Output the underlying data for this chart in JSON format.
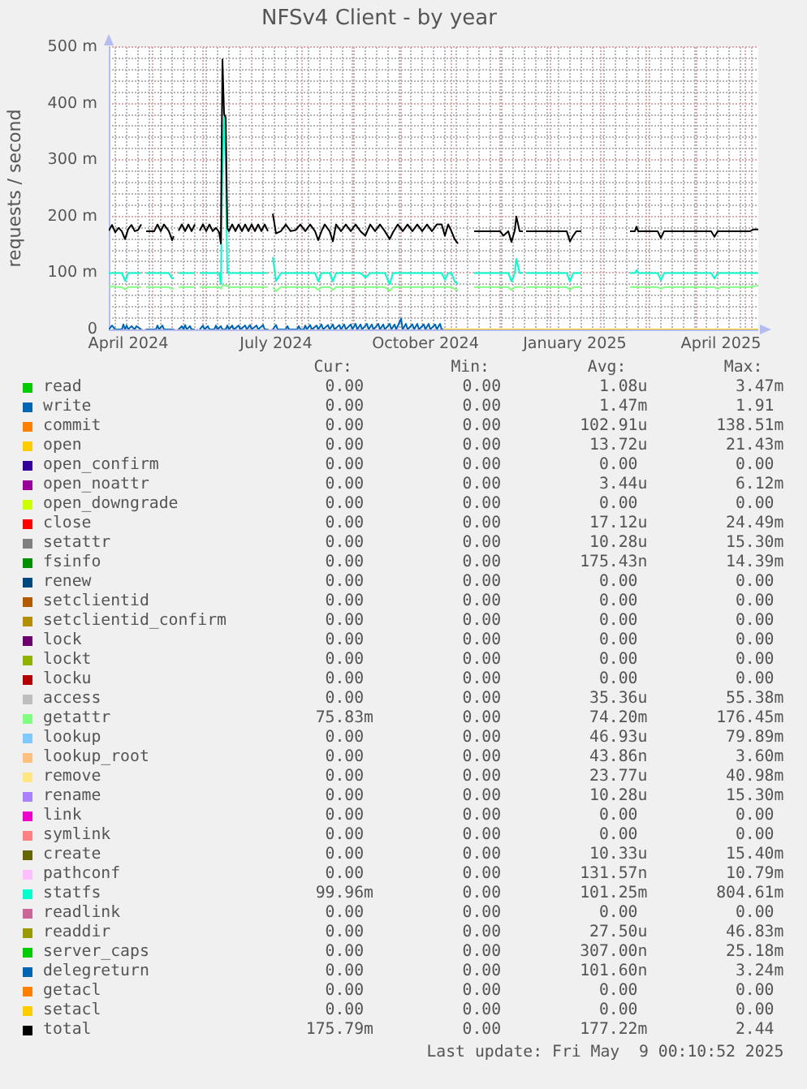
{
  "chart_data": {
    "type": "line",
    "title": "NFSv4 Client - by year",
    "ylabel": "requests / second",
    "xlim": [
      "2024-04-04",
      "2025-05-09"
    ],
    "xticks": [
      {
        "value": "2024-04-08",
        "label": null
      },
      {
        "value": "2024-04-15",
        "label": null
      },
      {
        "value": "2024-04-16",
        "label": "April 2024"
      },
      {
        "value": "2024-04-22",
        "label": null
      },
      {
        "value": "2024-04-29",
        "label": null
      },
      {
        "value": "2024-05-01",
        "label": null
      },
      {
        "value": "2024-05-06",
        "label": null
      },
      {
        "value": "2024-05-13",
        "label": null
      },
      {
        "value": "2024-05-20",
        "label": null
      },
      {
        "value": "2024-05-27",
        "label": null
      },
      {
        "value": "2024-06-01",
        "label": null
      },
      {
        "value": "2024-06-03",
        "label": null
      },
      {
        "value": "2024-06-10",
        "label": null
      },
      {
        "value": "2024-06-17",
        "label": null
      },
      {
        "value": "2024-06-24",
        "label": null
      },
      {
        "value": "2024-07-01",
        "label": null
      },
      {
        "value": "2024-07-08",
        "label": null
      },
      {
        "value": "2024-07-15",
        "label": null
      },
      {
        "value": "2024-07-16",
        "label": "July 2024"
      },
      {
        "value": "2024-07-22",
        "label": null
      },
      {
        "value": "2024-07-29",
        "label": null
      },
      {
        "value": "2024-08-01",
        "label": null
      },
      {
        "value": "2024-08-05",
        "label": null
      },
      {
        "value": "2024-08-12",
        "label": null
      },
      {
        "value": "2024-08-19",
        "label": null
      },
      {
        "value": "2024-08-26",
        "label": null
      },
      {
        "value": "2024-09-01",
        "label": null
      },
      {
        "value": "2024-09-02",
        "label": null
      },
      {
        "value": "2024-09-09",
        "label": null
      },
      {
        "value": "2024-09-16",
        "label": null
      },
      {
        "value": "2024-09-23",
        "label": null
      },
      {
        "value": "2024-09-30",
        "label": null
      },
      {
        "value": "2024-10-01",
        "label": null
      },
      {
        "value": "2024-10-07",
        "label": null
      },
      {
        "value": "2024-10-14",
        "label": null
      },
      {
        "value": "2024-10-16",
        "label": "October 2024"
      },
      {
        "value": "2024-10-21",
        "label": null
      },
      {
        "value": "2024-10-28",
        "label": null
      },
      {
        "value": "2024-11-01",
        "label": null
      },
      {
        "value": "2024-11-04",
        "label": null
      },
      {
        "value": "2024-11-11",
        "label": null
      },
      {
        "value": "2024-11-18",
        "label": null
      },
      {
        "value": "2024-11-25",
        "label": null
      },
      {
        "value": "2024-12-01",
        "label": null
      },
      {
        "value": "2024-12-02",
        "label": null
      },
      {
        "value": "2024-12-09",
        "label": null
      },
      {
        "value": "2024-12-16",
        "label": null
      },
      {
        "value": "2024-12-23",
        "label": null
      },
      {
        "value": "2024-12-30",
        "label": null
      },
      {
        "value": "2025-01-01",
        "label": null
      },
      {
        "value": "2025-01-06",
        "label": null
      },
      {
        "value": "2025-01-13",
        "label": null
      },
      {
        "value": "2025-01-16",
        "label": "January 2025"
      },
      {
        "value": "2025-01-20",
        "label": null
      },
      {
        "value": "2025-01-27",
        "label": null
      },
      {
        "value": "2025-02-01",
        "label": null
      },
      {
        "value": "2025-02-03",
        "label": null
      },
      {
        "value": "2025-02-10",
        "label": null
      },
      {
        "value": "2025-02-17",
        "label": null
      },
      {
        "value": "2025-02-24",
        "label": null
      },
      {
        "value": "2025-03-01",
        "label": null
      },
      {
        "value": "2025-03-03",
        "label": null
      },
      {
        "value": "2025-03-10",
        "label": null
      },
      {
        "value": "2025-03-17",
        "label": null
      },
      {
        "value": "2025-03-24",
        "label": null
      },
      {
        "value": "2025-03-31",
        "label": null
      },
      {
        "value": "2025-04-01",
        "label": null
      },
      {
        "value": "2025-04-07",
        "label": null
      },
      {
        "value": "2025-04-14",
        "label": null
      },
      {
        "value": "2025-04-16",
        "label": "April 2025"
      },
      {
        "value": "2025-04-21",
        "label": null
      },
      {
        "value": "2025-04-28",
        "label": null
      },
      {
        "value": "2025-05-01",
        "label": null
      },
      {
        "value": "2025-05-05",
        "label": null
      }
    ],
    "ylim": [
      0,
      500
    ],
    "yticks": [
      0,
      {
        "value": 20,
        "label": null
      },
      {
        "value": 40,
        "label": null
      },
      {
        "value": 60,
        "label": null
      },
      {
        "value": 80,
        "label": null
      },
      {
        "value": 100,
        "label": "100 m"
      },
      {
        "value": 120,
        "label": null
      },
      {
        "value": 140,
        "label": null
      },
      {
        "value": 160,
        "label": null
      },
      {
        "value": 180,
        "label": null
      },
      {
        "value": 200,
        "label": "200 m"
      },
      {
        "value": 220,
        "label": null
      },
      {
        "value": 240,
        "label": null
      },
      {
        "value": 260,
        "label": null
      },
      {
        "value": 280,
        "label": null
      },
      {
        "value": 300,
        "label": "300 m"
      },
      {
        "value": 320,
        "label": null
      },
      {
        "value": 340,
        "label": null
      },
      {
        "value": 360,
        "label": null
      },
      {
        "value": 380,
        "label": null
      },
      {
        "value": 400,
        "label": "400 m"
      },
      {
        "value": 420,
        "label": null
      },
      {
        "value": 440,
        "label": null
      },
      {
        "value": 460,
        "label": null
      },
      {
        "value": 480,
        "label": null
      },
      {
        "value": 500,
        "label": "500 m"
      }
    ],
    "grid": true,
    "legend": "bottom",
    "series": [
      {
        "name": "read",
        "color": "#00cc00"
      },
      {
        "name": "write",
        "color": "#0066b3",
        "x": [
          "2024-04-04",
          "2024-04-06",
          "2024-04-08",
          "2024-04-12",
          "2024-04-13",
          "2024-04-14",
          "2024-04-15",
          "2024-04-16",
          "2024-04-18",
          "2024-04-20",
          "2024-04-21",
          "2024-04-24",
          "2024-04-26",
          "2024-04-27",
          "2024-05-03",
          "2024-05-04",
          "2024-05-05",
          "2024-05-07",
          "2024-05-08",
          "2024-05-14",
          "2024-05-16",
          "2024-05-17",
          "2024-05-19",
          "2024-05-20",
          "2024-05-21",
          "2024-05-22",
          "2024-05-24",
          "2024-05-25",
          "2024-05-27",
          "2024-05-29",
          "2024-05-30",
          "2024-06-01",
          "2024-06-02",
          "2024-06-04",
          "2024-06-05",
          "2024-06-08",
          "2024-06-09",
          "2024-06-10",
          "2024-06-12",
          "2024-06-13",
          "2024-06-15",
          "2024-06-16",
          "2024-06-17",
          "2024-06-19",
          "2024-06-20",
          "2024-06-23",
          "2024-06-24",
          "2024-06-27",
          "2024-06-28",
          "2024-06-30",
          "2024-07-01",
          "2024-07-04",
          "2024-07-05",
          "2024-07-08",
          "2024-07-09",
          "2024-07-11",
          "2024-07-13",
          "2024-07-14",
          "2024-07-16",
          "2024-07-17",
          "2024-07-22",
          "2024-07-23",
          "2024-07-24",
          "2024-07-29",
          "2024-07-30",
          "2024-07-31",
          "2024-08-02",
          "2024-08-03",
          "2024-08-04",
          "2024-08-06",
          "2024-08-07",
          "2024-08-10",
          "2024-08-11",
          "2024-08-13",
          "2024-08-14",
          "2024-08-17",
          "2024-08-18",
          "2024-08-20",
          "2024-08-21",
          "2024-08-24",
          "2024-08-25",
          "2024-08-27",
          "2024-08-28",
          "2024-08-31",
          "2024-09-01",
          "2024-09-03",
          "2024-09-04",
          "2024-09-06",
          "2024-09-07",
          "2024-09-10",
          "2024-09-11",
          "2024-09-13",
          "2024-09-14",
          "2024-09-17",
          "2024-09-18",
          "2024-09-20",
          "2024-09-21",
          "2024-09-24",
          "2024-09-25",
          "2024-09-27",
          "2024-09-28",
          "2024-10-01",
          "2024-10-02",
          "2024-10-04",
          "2024-10-05",
          "2024-10-08",
          "2024-10-09",
          "2024-10-11",
          "2024-10-12",
          "2024-10-15",
          "2024-10-16",
          "2024-10-18",
          "2024-10-19",
          "2024-10-22",
          "2024-10-23",
          "2024-10-25",
          "2024-10-26",
          "2024-10-27"
        ],
        "values": [
          0,
          7,
          0,
          0,
          9,
          0,
          7,
          0,
          6,
          0,
          6,
          0,
          null,
          0,
          0,
          7,
          0,
          7,
          0,
          0,
          null,
          0,
          6,
          0,
          8,
          0,
          6,
          0,
          0,
          null,
          0,
          7,
          0,
          6,
          0,
          0,
          7,
          0,
          6,
          0,
          0,
          7,
          0,
          7,
          0,
          7,
          0,
          7,
          0,
          8,
          0,
          7,
          0,
          8,
          0,
          0,
          null,
          0,
          8,
          0,
          0,
          6,
          0,
          0,
          6,
          0,
          0,
          7,
          0,
          8,
          0,
          7,
          0,
          9,
          0,
          8,
          0,
          9,
          0,
          8,
          0,
          9,
          0,
          9,
          0,
          10,
          0,
          9,
          0,
          10,
          0,
          9,
          0,
          10,
          0,
          9,
          0,
          10,
          0,
          9,
          0,
          19,
          0,
          10,
          0,
          9,
          0,
          10,
          0,
          9,
          0,
          10,
          0,
          9,
          0,
          10,
          0,
          0
        ]
      },
      {
        "name": "commit",
        "color": "#ff8000"
      },
      {
        "name": "open",
        "color": "#ffcc00"
      },
      {
        "name": "open_confirm",
        "color": "#330099"
      },
      {
        "name": "open_noattr",
        "color": "#990099"
      },
      {
        "name": "open_downgrade",
        "color": "#ccff00"
      },
      {
        "name": "close",
        "color": "#ff0000"
      },
      {
        "name": "setattr",
        "color": "#808080"
      },
      {
        "name": "fsinfo",
        "color": "#008f00"
      },
      {
        "name": "renew",
        "color": "#00487d"
      },
      {
        "name": "setclientid",
        "color": "#b35a00"
      },
      {
        "name": "setclientid_confirm",
        "color": "#b38f00"
      },
      {
        "name": "lock",
        "color": "#6b006b"
      },
      {
        "name": "lockt",
        "color": "#8fb300"
      },
      {
        "name": "locku",
        "color": "#b30000"
      },
      {
        "name": "access",
        "color": "#bebebe"
      },
      {
        "name": "getattr",
        "color": "#80ff80",
        "x": [
          "2024-04-04",
          "2024-04-09",
          "2024-04-12",
          "2024-04-14",
          "2024-04-16",
          "2024-04-20",
          "2024-04-24",
          "2024-04-26",
          "2024-04-27",
          "2024-05-11",
          "2024-05-13",
          "2024-05-14",
          "2024-05-16",
          "2024-05-17",
          "2024-05-27",
          "2024-05-29",
          "2024-05-30",
          "2024-06-11",
          "2024-06-12",
          "2024-06-13",
          "2024-06-15",
          "2024-06-17",
          "2024-07-11",
          "2024-07-13",
          "2024-07-14",
          "2024-07-16",
          "2024-07-19",
          "2024-08-09",
          "2024-08-11",
          "2024-08-13",
          "2024-08-18",
          "2024-08-20",
          "2024-08-22",
          "2024-09-21",
          "2024-09-24",
          "2024-09-26",
          "2024-11-01",
          "2024-11-03",
          "2024-11-05",
          "2024-11-08",
          "2024-11-15",
          "2024-12-06",
          "2024-12-08",
          "2024-12-10",
          "2024-12-15",
          "2024-12-16",
          "2024-12-17",
          "2025-01-11",
          "2025-01-13",
          "2025-01-15",
          "2025-01-20",
          "2025-01-22",
          "2025-02-19",
          "2025-03-08",
          "2025-03-10",
          "2025-03-12",
          "2025-04-12",
          "2025-04-14",
          "2025-04-16",
          "2025-05-04",
          "2025-05-09"
        ],
        "values": [
          76,
          75,
          75,
          71,
          75,
          75,
          75,
          null,
          75,
          75,
          72,
          73,
          null,
          75,
          75,
          null,
          75,
          75,
          72,
          78,
          78,
          75,
          75,
          null,
          75,
          68,
          75,
          75,
          70,
          75,
          75,
          70,
          75,
          75,
          68,
          75,
          75,
          72,
          68,
          null,
          75,
          75,
          70,
          75,
          75,
          null,
          75,
          75,
          70,
          75,
          75,
          null,
          75,
          75,
          72,
          75,
          75,
          72,
          75,
          75,
          78
        ]
      },
      {
        "name": "lookup",
        "color": "#80c9ff"
      },
      {
        "name": "lookup_root",
        "color": "#ffc080"
      },
      {
        "name": "remove",
        "color": "#ffe680"
      },
      {
        "name": "rename",
        "color": "#aa80ff"
      },
      {
        "name": "link",
        "color": "#ee00cc"
      },
      {
        "name": "symlink",
        "color": "#ff8080"
      },
      {
        "name": "create",
        "color": "#666600"
      },
      {
        "name": "pathconf",
        "color": "#ffbfff"
      },
      {
        "name": "statfs",
        "color": "#00ffcc",
        "x": [
          "2024-04-04",
          "2024-04-12",
          "2024-04-14",
          "2024-04-16",
          "2024-04-24",
          "2024-04-26",
          "2024-04-27",
          "2024-05-11",
          "2024-05-13",
          "2024-05-14",
          "2024-05-16",
          "2024-05-17",
          "2024-05-27",
          "2024-05-29",
          "2024-05-30",
          "2024-06-11",
          "2024-06-12",
          "2024-06-13",
          "2024-06-14",
          "2024-06-15",
          "2024-06-16",
          "2024-07-11",
          "2024-07-13",
          "2024-07-14",
          "2024-07-16",
          "2024-07-19",
          "2024-08-09",
          "2024-08-11",
          "2024-08-13",
          "2024-08-18",
          "2024-08-20",
          "2024-08-22",
          "2024-09-06",
          "2024-09-09",
          "2024-09-12",
          "2024-09-21",
          "2024-09-24",
          "2024-09-26",
          "2024-10-26",
          "2024-10-28",
          "2024-10-30",
          "2024-11-01",
          "2024-11-03",
          "2024-11-05",
          "2024-11-08",
          "2024-11-15",
          "2024-12-06",
          "2024-12-08",
          "2024-12-10",
          "2024-12-11",
          "2024-12-13",
          "2024-12-15",
          "2024-12-16",
          "2024-12-17",
          "2025-01-11",
          "2025-01-13",
          "2025-01-15",
          "2025-01-20",
          "2025-01-22",
          "2025-02-19",
          "2025-02-22",
          "2025-02-23",
          "2025-02-24",
          "2025-03-08",
          "2025-03-10",
          "2025-03-12",
          "2025-04-10",
          "2025-04-12",
          "2025-04-14",
          "2025-05-09"
        ],
        "values": [
          100,
          100,
          86,
          100,
          100,
          null,
          100,
          100,
          90,
          92,
          null,
          100,
          100,
          null,
          100,
          100,
          80,
          300,
          376,
          290,
          100,
          100,
          null,
          128,
          86,
          100,
          100,
          85,
          100,
          100,
          85,
          100,
          100,
          92,
          100,
          100,
          80,
          100,
          100,
          88,
          100,
          100,
          85,
          80,
          null,
          100,
          100,
          85,
          100,
          125,
          100,
          100,
          null,
          100,
          100,
          85,
          100,
          100,
          null,
          100,
          100,
          105,
          100,
          100,
          87,
          100,
          100,
          90,
          100,
          100
        ]
      },
      {
        "name": "readlink",
        "color": "#cc6699"
      },
      {
        "name": "readdir",
        "color": "#999900"
      },
      {
        "name": "server_caps",
        "color": "#00cc00"
      },
      {
        "name": "delegreturn",
        "color": "#0066b3"
      },
      {
        "name": "getacl",
        "color": "#ff8000"
      },
      {
        "name": "setacl",
        "color": "#ffcc00",
        "x": [
          "2024-10-27",
          "2025-05-09"
        ],
        "values": [
          0,
          0
        ]
      },
      {
        "name": "total",
        "color": "#000000",
        "x": [
          "2024-04-04",
          "2024-04-06",
          "2024-04-08",
          "2024-04-10",
          "2024-04-12",
          "2024-04-14",
          "2024-04-16",
          "2024-04-18",
          "2024-04-20",
          "2024-04-22",
          "2024-04-24",
          "2024-04-26",
          "2024-04-27",
          "2024-05-02",
          "2024-05-04",
          "2024-05-06",
          "2024-05-08",
          "2024-05-11",
          "2024-05-13",
          "2024-05-14",
          "2024-05-16",
          "2024-05-17",
          "2024-05-19",
          "2024-05-21",
          "2024-05-23",
          "2024-05-25",
          "2024-05-27",
          "2024-05-29",
          "2024-05-30",
          "2024-06-01",
          "2024-06-03",
          "2024-06-05",
          "2024-06-07",
          "2024-06-09",
          "2024-06-11",
          "2024-06-12",
          "2024-06-13",
          "2024-06-14",
          "2024-06-15",
          "2024-06-16",
          "2024-06-17",
          "2024-06-19",
          "2024-06-21",
          "2024-06-23",
          "2024-06-25",
          "2024-06-27",
          "2024-06-29",
          "2024-07-01",
          "2024-07-03",
          "2024-07-05",
          "2024-07-07",
          "2024-07-09",
          "2024-07-11",
          "2024-07-13",
          "2024-07-14",
          "2024-07-16",
          "2024-07-19",
          "2024-07-22",
          "2024-07-25",
          "2024-07-28",
          "2024-07-31",
          "2024-08-03",
          "2024-08-06",
          "2024-08-09",
          "2024-08-11",
          "2024-08-13",
          "2024-08-15",
          "2024-08-18",
          "2024-08-20",
          "2024-08-22",
          "2024-08-25",
          "2024-08-28",
          "2024-08-31",
          "2024-09-03",
          "2024-09-06",
          "2024-09-09",
          "2024-09-12",
          "2024-09-15",
          "2024-09-18",
          "2024-09-21",
          "2024-09-24",
          "2024-09-26",
          "2024-09-29",
          "2024-10-02",
          "2024-10-05",
          "2024-10-08",
          "2024-10-11",
          "2024-10-14",
          "2024-10-17",
          "2024-10-20",
          "2024-10-23",
          "2024-10-26",
          "2024-10-28",
          "2024-10-30",
          "2024-11-01",
          "2024-11-03",
          "2024-11-05",
          "2024-11-08",
          "2024-11-15",
          "2024-11-23",
          "2024-12-01",
          "2024-12-03",
          "2024-12-06",
          "2024-12-08",
          "2024-12-10",
          "2024-12-11",
          "2024-12-13",
          "2024-12-15",
          "2024-12-16",
          "2024-12-17",
          "2025-01-02",
          "2025-01-11",
          "2025-01-13",
          "2025-01-15",
          "2025-01-17",
          "2025-01-20",
          "2025-01-22",
          "2025-02-19",
          "2025-02-22",
          "2025-02-23",
          "2025-02-24",
          "2025-03-03",
          "2025-03-08",
          "2025-03-10",
          "2025-03-12",
          "2025-03-23",
          "2025-04-10",
          "2025-04-12",
          "2025-04-14",
          "2025-04-27",
          "2025-05-04",
          "2025-05-06",
          "2025-05-09"
        ],
        "values": [
          175,
          185,
          172,
          180,
          174,
          160,
          178,
          185,
          174,
          176,
          186,
          null,
          174,
          174,
          186,
          174,
          186,
          174,
          158,
          165,
          null,
          175,
          186,
          174,
          186,
          174,
          186,
          null,
          175,
          186,
          174,
          186,
          174,
          180,
          172,
          152,
          478,
          382,
          375,
          180,
          174,
          186,
          174,
          186,
          174,
          186,
          174,
          186,
          174,
          186,
          174,
          186,
          174,
          null,
          205,
          170,
          174,
          186,
          174,
          176,
          186,
          174,
          186,
          174,
          158,
          174,
          186,
          174,
          156,
          186,
          174,
          186,
          174,
          186,
          174,
          166,
          186,
          174,
          186,
          174,
          160,
          172,
          186,
          174,
          186,
          174,
          186,
          174,
          186,
          174,
          186,
          186,
          166,
          186,
          174,
          160,
          152,
          null,
          174,
          174,
          174,
          166,
          174,
          155,
          175,
          200,
          174,
          174,
          null,
          174,
          174,
          174,
          156,
          166,
          174,
          174,
          null,
          174,
          174,
          182,
          174,
          174,
          174,
          162,
          174,
          174,
          174,
          164,
          174,
          174,
          174,
          177,
          177
        ]
      }
    ],
    "annotations": [
      "Cur:",
      "Min:",
      "Avg:",
      "Max:",
      "0.00",
      "0.00",
      "1.08u",
      "3.47m",
      "0.00",
      "0.00",
      "1.47m",
      "1.91",
      "0.00",
      "0.00",
      "102.91u",
      "138.51m",
      "0.00",
      "0.00",
      "13.72u",
      "21.43m",
      "0.00",
      "0.00",
      "0.00",
      "0.00",
      "0.00",
      "0.00",
      "3.44u",
      "6.12m",
      "0.00",
      "0.00",
      "0.00",
      "0.00",
      "0.00",
      "0.00",
      "17.12u",
      "24.49m",
      "0.00",
      "0.00",
      "10.28u",
      "15.30m",
      "0.00",
      "0.00",
      "175.43n",
      "14.39m",
      "0.00",
      "0.00",
      "0.00",
      "0.00",
      "0.00",
      "0.00",
      "0.00",
      "0.00",
      "0.00",
      "0.00",
      "0.00",
      "0.00",
      "0.00",
      "0.00",
      "0.00",
      "0.00",
      "0.00",
      "0.00",
      "0.00",
      "0.00",
      "0.00",
      "0.00",
      "0.00",
      "0.00",
      "0.00",
      "0.00",
      "35.36u",
      "55.38m",
      "75.83m",
      "0.00",
      "74.20m",
      "176.45m",
      "0.00",
      "0.00",
      "46.93u",
      "79.89m",
      "0.00",
      "0.00",
      "43.86n",
      "3.60m",
      "0.00",
      "0.00",
      "23.77u",
      "40.98m",
      "0.00",
      "0.00",
      "10.28u",
      "15.30m",
      "0.00",
      "0.00",
      "0.00",
      "0.00",
      "0.00",
      "0.00",
      "0.00",
      "0.00",
      "0.00",
      "0.00",
      "10.33u",
      "15.40m",
      "0.00",
      "0.00",
      "131.57n",
      "10.79m",
      "99.96m",
      "0.00",
      "101.25m",
      "804.61m",
      "0.00",
      "0.00",
      "0.00",
      "0.00",
      "0.00",
      "0.00",
      "27.50u",
      "46.83m",
      "0.00",
      "0.00",
      "307.00n",
      "25.18m",
      "0.00",
      "0.00",
      "101.60n",
      "3.24m",
      "0.00",
      "0.00",
      "0.00",
      "0.00",
      "0.00",
      "0.00",
      "0.00",
      "0.00",
      "175.79m",
      "0.00",
      "177.22m",
      "2.44",
      "Last update: Fri May  9 00:10:52 2025"
    ]
  }
}
